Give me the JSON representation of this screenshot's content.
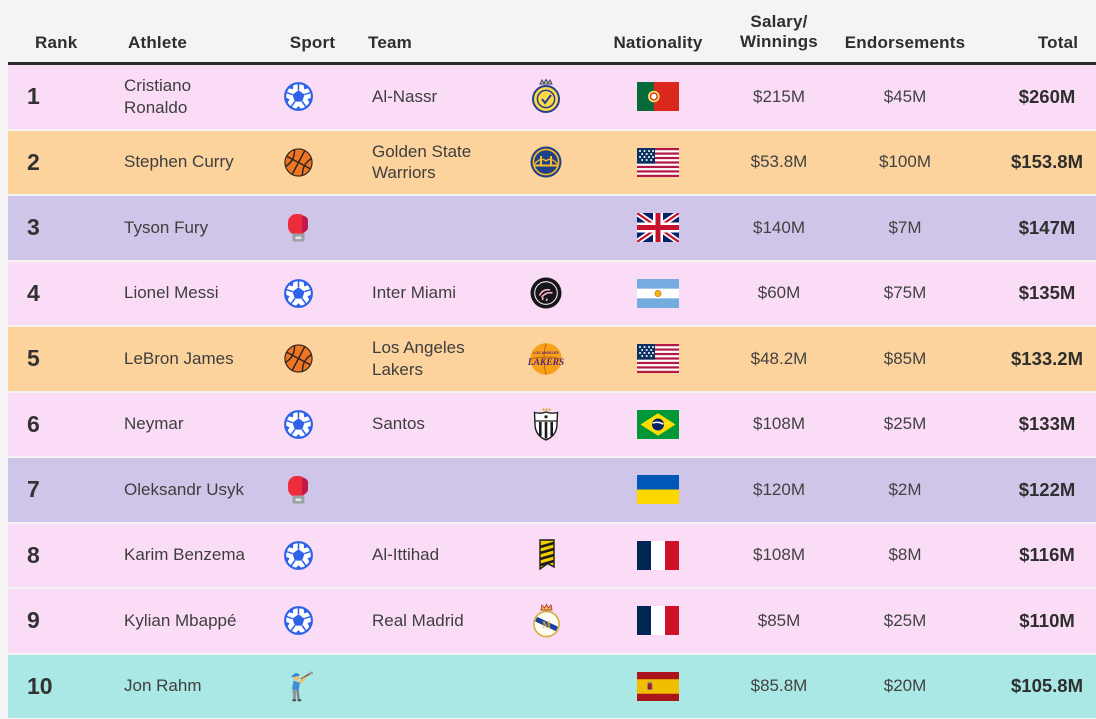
{
  "table": {
    "header": {
      "rank": "Rank",
      "athlete": "Athlete",
      "sport": "Sport",
      "team": "Team",
      "nationality": "Nationality",
      "salary_line1": "Salary/",
      "salary_line2": "Winnings",
      "endorsements": "Endorsements",
      "total": "Total"
    },
    "rows": [
      {
        "rank": "1",
        "athlete": "Cristiano Ronaldo",
        "sport": "soccer",
        "team": "Al-Nassr",
        "team_logo": "al-nassr",
        "nationality": "portugal",
        "salary": "$215M",
        "endorsements": "$45M",
        "total": "$260M",
        "row_color": "pink"
      },
      {
        "rank": "2",
        "athlete": "Stephen Curry",
        "sport": "basketball",
        "team": "Golden State Warriors",
        "team_logo": "warriors",
        "nationality": "usa",
        "salary": "$53.8M",
        "endorsements": "$100M",
        "total": "$153.8M",
        "row_color": "orange"
      },
      {
        "rank": "3",
        "athlete": "Tyson Fury",
        "sport": "boxing",
        "team": "",
        "team_logo": "",
        "nationality": "uk",
        "salary": "$140M",
        "endorsements": "$7M",
        "total": "$147M",
        "row_color": "purple"
      },
      {
        "rank": "4",
        "athlete": "Lionel Messi",
        "sport": "soccer",
        "team": "Inter Miami",
        "team_logo": "inter-miami",
        "nationality": "argentina",
        "salary": "$60M",
        "endorsements": "$75M",
        "total": "$135M",
        "row_color": "pink"
      },
      {
        "rank": "5",
        "athlete": "LeBron James",
        "sport": "basketball",
        "team": "Los Angeles Lakers",
        "team_logo": "lakers",
        "nationality": "usa",
        "salary": "$48.2M",
        "endorsements": "$85M",
        "total": "$133.2M",
        "row_color": "orange"
      },
      {
        "rank": "6",
        "athlete": "Neymar",
        "sport": "soccer",
        "team": "Santos",
        "team_logo": "santos",
        "nationality": "brazil",
        "salary": "$108M",
        "endorsements": "$25M",
        "total": "$133M",
        "row_color": "pink"
      },
      {
        "rank": "7",
        "athlete": "Oleksandr Usyk",
        "sport": "boxing",
        "team": "",
        "team_logo": "",
        "nationality": "ukraine",
        "salary": "$120M",
        "endorsements": "$2M",
        "total": "$122M",
        "row_color": "purple"
      },
      {
        "rank": "8",
        "athlete": "Karim Benzema",
        "sport": "soccer",
        "team": "Al-Ittihad",
        "team_logo": "al-ittihad",
        "nationality": "france",
        "salary": "$108M",
        "endorsements": "$8M",
        "total": "$116M",
        "row_color": "pink"
      },
      {
        "rank": "9",
        "athlete": "Kylian Mbappé",
        "sport": "soccer",
        "team": "Real Madrid",
        "team_logo": "real-madrid",
        "nationality": "france",
        "salary": "$85M",
        "endorsements": "$25M",
        "total": "$110M",
        "row_color": "pink"
      },
      {
        "rank": "10",
        "athlete": "Jon Rahm",
        "sport": "golf",
        "team": "",
        "team_logo": "",
        "nationality": "spain",
        "salary": "$85.8M",
        "endorsements": "$20M",
        "total": "$105.8M",
        "row_color": "teal"
      }
    ]
  },
  "icon_names": {
    "sports": {
      "soccer": "soccer-ball-icon",
      "basketball": "basketball-icon",
      "boxing": "boxing-glove-icon",
      "golf": "golfer-icon"
    },
    "flags": {
      "portugal": "portugal-flag-icon",
      "usa": "usa-flag-icon",
      "uk": "uk-flag-icon",
      "argentina": "argentina-flag-icon",
      "brazil": "brazil-flag-icon",
      "ukraine": "ukraine-flag-icon",
      "france": "france-flag-icon",
      "spain": "spain-flag-icon"
    },
    "logos": {
      "al-nassr": "al-nassr-logo-icon",
      "warriors": "golden-state-warriors-logo-icon",
      "inter-miami": "inter-miami-logo-icon",
      "lakers": "la-lakers-logo-icon",
      "santos": "santos-logo-icon",
      "al-ittihad": "al-ittihad-logo-icon",
      "real-madrid": "real-madrid-logo-icon"
    }
  },
  "colors": {
    "background": "#f5f4f5",
    "row_pink": "#fbdcf7",
    "row_orange": "#fcd39c",
    "row_purple": "#cfc5e8",
    "row_teal": "#a9e8e4",
    "header_border": "#2b2b2b",
    "text": "#3e3e3e",
    "text_strong": "#2e2e2e",
    "soccer_blue": "#2e62e8",
    "basketball_orange": "#ee7623",
    "glove_red": "#ee2d3c"
  },
  "chart_data": {
    "type": "table",
    "title": "",
    "columns": [
      "Rank",
      "Athlete",
      "Sport",
      "Team",
      "Nationality",
      "Salary/Winnings",
      "Endorsements",
      "Total"
    ],
    "rows": [
      [
        "1",
        "Cristiano Ronaldo",
        "Soccer",
        "Al-Nassr",
        "Portugal",
        "$215M",
        "$45M",
        "$260M"
      ],
      [
        "2",
        "Stephen Curry",
        "Basketball",
        "Golden State Warriors",
        "USA",
        "$53.8M",
        "$100M",
        "$153.8M"
      ],
      [
        "3",
        "Tyson Fury",
        "Boxing",
        "",
        "UK",
        "$140M",
        "$7M",
        "$147M"
      ],
      [
        "4",
        "Lionel Messi",
        "Soccer",
        "Inter Miami",
        "Argentina",
        "$60M",
        "$75M",
        "$135M"
      ],
      [
        "5",
        "LeBron James",
        "Basketball",
        "Los Angeles Lakers",
        "USA",
        "$48.2M",
        "$85M",
        "$133.2M"
      ],
      [
        "6",
        "Neymar",
        "Soccer",
        "Santos",
        "Brazil",
        "$108M",
        "$25M",
        "$133M"
      ],
      [
        "7",
        "Oleksandr Usyk",
        "Boxing",
        "",
        "Ukraine",
        "$120M",
        "$2M",
        "$122M"
      ],
      [
        "8",
        "Karim Benzema",
        "Soccer",
        "Al-Ittihad",
        "France",
        "$108M",
        "$8M",
        "$116M"
      ],
      [
        "9",
        "Kylian Mbappé",
        "Soccer",
        "Real Madrid",
        "France",
        "$85M",
        "$25M",
        "$110M"
      ],
      [
        "10",
        "Jon Rahm",
        "Golf",
        "",
        "Spain",
        "$85.8M",
        "$20M",
        "$105.8M"
      ]
    ]
  }
}
